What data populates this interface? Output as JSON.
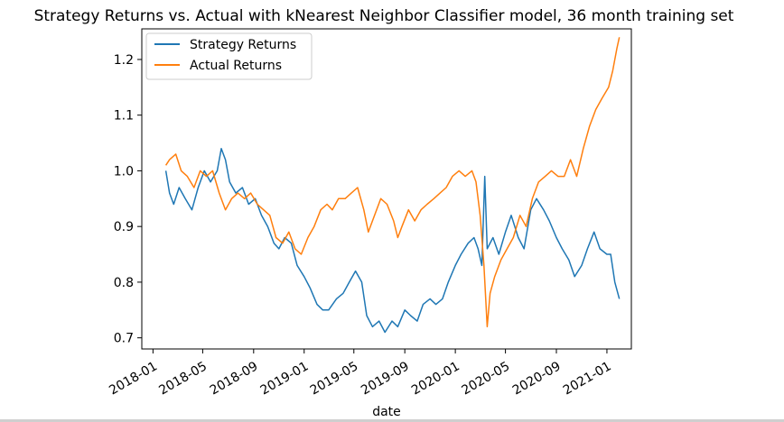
{
  "chart_data": {
    "type": "line",
    "title": "Strategy Returns vs. Actual with kNearest Neighbor Classifier model, 36 month training set",
    "xlabel": "date",
    "ylabel": "",
    "ylim": [
      0.68,
      1.255
    ],
    "yticks": [
      0.7,
      0.8,
      0.9,
      1.0,
      1.1,
      1.2
    ],
    "ytick_labels": [
      "0.7",
      "0.8",
      "0.9",
      "1.0",
      "1.1",
      "1.2"
    ],
    "xlim": [
      "2017-12-05",
      "2021-03-01"
    ],
    "xticks": [
      "2018-01-01",
      "2018-05-01",
      "2018-09-01",
      "2019-01-01",
      "2019-05-01",
      "2019-09-01",
      "2020-01-01",
      "2020-05-01",
      "2020-09-01",
      "2021-01-01"
    ],
    "xtick_labels": [
      "2018-01",
      "2018-05",
      "2018-09",
      "2019-01",
      "2019-05",
      "2019-09",
      "2020-01",
      "2020-05",
      "2020-09",
      "2021-01"
    ],
    "grid": false,
    "legend_position": "top-left",
    "series": [
      {
        "name": "Strategy Returns",
        "color": "#1f77b4",
        "points": [
          [
            "2018-02-01",
            1.0
          ],
          [
            "2018-02-10",
            0.96
          ],
          [
            "2018-02-20",
            0.94
          ],
          [
            "2018-03-05",
            0.97
          ],
          [
            "2018-03-20",
            0.95
          ],
          [
            "2018-04-05",
            0.93
          ],
          [
            "2018-04-20",
            0.97
          ],
          [
            "2018-05-05",
            1.0
          ],
          [
            "2018-05-20",
            0.98
          ],
          [
            "2018-06-05",
            1.0
          ],
          [
            "2018-06-15",
            1.04
          ],
          [
            "2018-06-25",
            1.02
          ],
          [
            "2018-07-05",
            0.98
          ],
          [
            "2018-07-20",
            0.96
          ],
          [
            "2018-08-05",
            0.97
          ],
          [
            "2018-08-20",
            0.94
          ],
          [
            "2018-09-05",
            0.95
          ],
          [
            "2018-09-20",
            0.92
          ],
          [
            "2018-10-05",
            0.9
          ],
          [
            "2018-10-20",
            0.87
          ],
          [
            "2018-11-01",
            0.86
          ],
          [
            "2018-11-15",
            0.88
          ],
          [
            "2018-12-01",
            0.87
          ],
          [
            "2018-12-15",
            0.83
          ],
          [
            "2019-01-01",
            0.81
          ],
          [
            "2019-01-15",
            0.79
          ],
          [
            "2019-02-01",
            0.76
          ],
          [
            "2019-02-15",
            0.75
          ],
          [
            "2019-03-01",
            0.75
          ],
          [
            "2019-03-20",
            0.77
          ],
          [
            "2019-04-05",
            0.78
          ],
          [
            "2019-04-20",
            0.8
          ],
          [
            "2019-05-05",
            0.82
          ],
          [
            "2019-05-20",
            0.8
          ],
          [
            "2019-06-01",
            0.74
          ],
          [
            "2019-06-15",
            0.72
          ],
          [
            "2019-07-01",
            0.73
          ],
          [
            "2019-07-15",
            0.71
          ],
          [
            "2019-08-01",
            0.73
          ],
          [
            "2019-08-15",
            0.72
          ],
          [
            "2019-09-01",
            0.75
          ],
          [
            "2019-09-15",
            0.74
          ],
          [
            "2019-10-01",
            0.73
          ],
          [
            "2019-10-15",
            0.76
          ],
          [
            "2019-11-01",
            0.77
          ],
          [
            "2019-11-15",
            0.76
          ],
          [
            "2019-12-01",
            0.77
          ],
          [
            "2019-12-15",
            0.8
          ],
          [
            "2020-01-01",
            0.83
          ],
          [
            "2020-01-15",
            0.85
          ],
          [
            "2020-02-01",
            0.87
          ],
          [
            "2020-02-15",
            0.88
          ],
          [
            "2020-02-25",
            0.86
          ],
          [
            "2020-03-05",
            0.83
          ],
          [
            "2020-03-12",
            0.99
          ],
          [
            "2020-03-18",
            0.86
          ],
          [
            "2020-04-01",
            0.88
          ],
          [
            "2020-04-15",
            0.85
          ],
          [
            "2020-05-01",
            0.89
          ],
          [
            "2020-05-15",
            0.92
          ],
          [
            "2020-06-01",
            0.88
          ],
          [
            "2020-06-15",
            0.86
          ],
          [
            "2020-07-01",
            0.93
          ],
          [
            "2020-07-15",
            0.95
          ],
          [
            "2020-08-01",
            0.93
          ],
          [
            "2020-08-15",
            0.91
          ],
          [
            "2020-09-01",
            0.88
          ],
          [
            "2020-09-15",
            0.86
          ],
          [
            "2020-10-01",
            0.84
          ],
          [
            "2020-10-15",
            0.81
          ],
          [
            "2020-11-01",
            0.83
          ],
          [
            "2020-11-15",
            0.86
          ],
          [
            "2020-12-01",
            0.89
          ],
          [
            "2020-12-15",
            0.86
          ],
          [
            "2021-01-01",
            0.85
          ],
          [
            "2021-01-10",
            0.85
          ],
          [
            "2021-01-20",
            0.8
          ],
          [
            "2021-01-31",
            0.77
          ]
        ]
      },
      {
        "name": "Actual Returns",
        "color": "#ff7f0e",
        "points": [
          [
            "2018-02-01",
            1.01
          ],
          [
            "2018-02-10",
            1.02
          ],
          [
            "2018-02-25",
            1.03
          ],
          [
            "2018-03-10",
            1.0
          ],
          [
            "2018-03-25",
            0.99
          ],
          [
            "2018-04-10",
            0.97
          ],
          [
            "2018-04-25",
            1.0
          ],
          [
            "2018-05-10",
            0.99
          ],
          [
            "2018-05-25",
            1.0
          ],
          [
            "2018-06-10",
            0.96
          ],
          [
            "2018-06-25",
            0.93
          ],
          [
            "2018-07-10",
            0.95
          ],
          [
            "2018-07-25",
            0.96
          ],
          [
            "2018-08-10",
            0.95
          ],
          [
            "2018-08-25",
            0.96
          ],
          [
            "2018-09-10",
            0.94
          ],
          [
            "2018-09-25",
            0.93
          ],
          [
            "2018-10-10",
            0.92
          ],
          [
            "2018-10-25",
            0.88
          ],
          [
            "2018-11-10",
            0.87
          ],
          [
            "2018-11-25",
            0.89
          ],
          [
            "2018-12-10",
            0.86
          ],
          [
            "2018-12-25",
            0.85
          ],
          [
            "2019-01-10",
            0.88
          ],
          [
            "2019-01-25",
            0.9
          ],
          [
            "2019-02-10",
            0.93
          ],
          [
            "2019-02-25",
            0.94
          ],
          [
            "2019-03-10",
            0.93
          ],
          [
            "2019-03-25",
            0.95
          ],
          [
            "2019-04-10",
            0.95
          ],
          [
            "2019-04-25",
            0.96
          ],
          [
            "2019-05-10",
            0.97
          ],
          [
            "2019-05-25",
            0.93
          ],
          [
            "2019-06-05",
            0.89
          ],
          [
            "2019-06-20",
            0.92
          ],
          [
            "2019-07-05",
            0.95
          ],
          [
            "2019-07-20",
            0.94
          ],
          [
            "2019-08-05",
            0.91
          ],
          [
            "2019-08-15",
            0.88
          ],
          [
            "2019-08-25",
            0.9
          ],
          [
            "2019-09-10",
            0.93
          ],
          [
            "2019-09-25",
            0.91
          ],
          [
            "2019-10-10",
            0.93
          ],
          [
            "2019-10-25",
            0.94
          ],
          [
            "2019-11-10",
            0.95
          ],
          [
            "2019-11-25",
            0.96
          ],
          [
            "2019-12-10",
            0.97
          ],
          [
            "2019-12-25",
            0.99
          ],
          [
            "2020-01-10",
            1.0
          ],
          [
            "2020-01-25",
            0.99
          ],
          [
            "2020-02-10",
            1.0
          ],
          [
            "2020-02-20",
            0.98
          ],
          [
            "2020-03-01",
            0.92
          ],
          [
            "2020-03-10",
            0.83
          ],
          [
            "2020-03-18",
            0.72
          ],
          [
            "2020-03-25",
            0.78
          ],
          [
            "2020-04-05",
            0.81
          ],
          [
            "2020-04-20",
            0.84
          ],
          [
            "2020-05-05",
            0.86
          ],
          [
            "2020-05-20",
            0.88
          ],
          [
            "2020-06-05",
            0.92
          ],
          [
            "2020-06-20",
            0.9
          ],
          [
            "2020-07-05",
            0.95
          ],
          [
            "2020-07-20",
            0.98
          ],
          [
            "2020-08-05",
            0.99
          ],
          [
            "2020-08-20",
            1.0
          ],
          [
            "2020-09-05",
            0.99
          ],
          [
            "2020-09-20",
            0.99
          ],
          [
            "2020-10-05",
            1.02
          ],
          [
            "2020-10-20",
            0.99
          ],
          [
            "2020-11-05",
            1.04
          ],
          [
            "2020-11-20",
            1.08
          ],
          [
            "2020-12-05",
            1.11
          ],
          [
            "2020-12-20",
            1.13
          ],
          [
            "2021-01-05",
            1.15
          ],
          [
            "2021-01-15",
            1.18
          ],
          [
            "2021-01-25",
            1.22
          ],
          [
            "2021-01-31",
            1.24
          ]
        ]
      }
    ]
  }
}
